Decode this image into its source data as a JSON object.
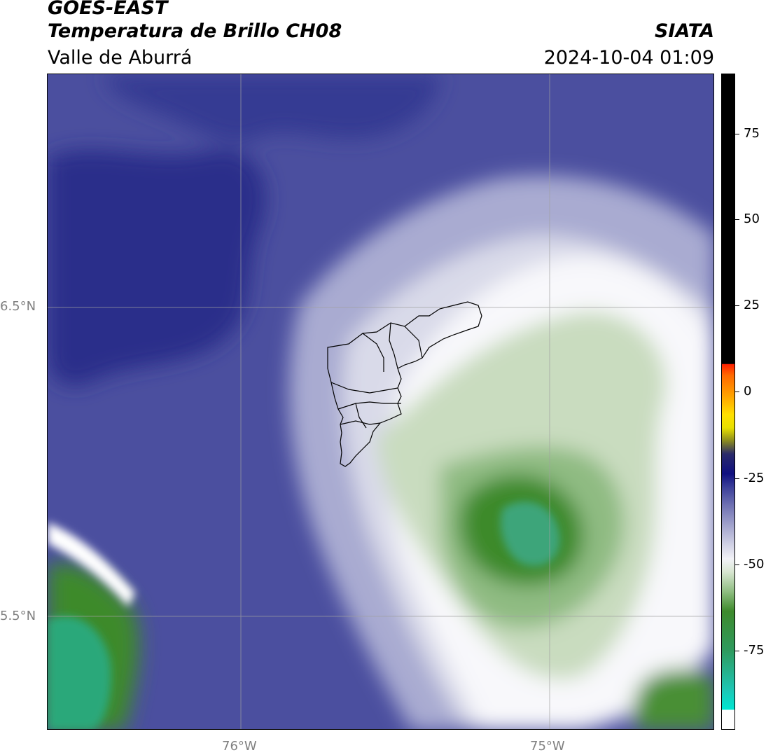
{
  "header": {
    "title": "GOES-EAST",
    "subtitle": "Temperatura de Brillo CH08",
    "region": "Valle de Aburrá",
    "organization": "SIATA",
    "timestamp": "2024-10-04 01:09"
  },
  "map": {
    "latitude_labels": [
      "6.5°N",
      "5.5°N"
    ],
    "longitude_labels": [
      "76°W",
      "75°W"
    ],
    "colors": {
      "deep_blue": "#2a2d8a",
      "blue": "#4b4f9f",
      "light_lavender": "#a9abd1",
      "white": "#f8f8fb",
      "light_green": "#c9dcbf",
      "green": "#3e8a2c",
      "teal": "#2aa87a"
    }
  },
  "colorbar": {
    "ticks": [
      "75",
      "50",
      "25",
      "0",
      "-25",
      "-50",
      "-75"
    ],
    "colors": [
      "#000000",
      "#ff0000",
      "#ff8c00",
      "#ffee00",
      "#1f1f7a",
      "#ffffff",
      "#3e8a2c",
      "#00e6d2"
    ]
  }
}
